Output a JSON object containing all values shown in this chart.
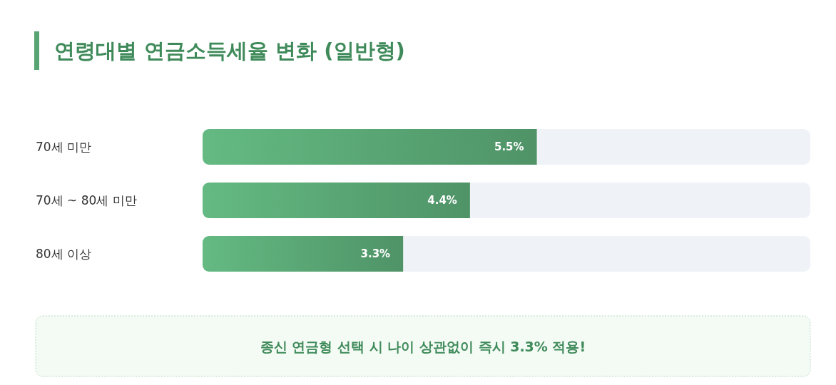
{
  "chart_data": {
    "type": "bar",
    "orientation": "horizontal",
    "title": "연령대별 연금소득세율 변화 (일반형)",
    "categories": [
      "70세 미만",
      "70세 ~ 80세 미만",
      "80세 이상"
    ],
    "values": [
      5.5,
      4.4,
      3.3
    ],
    "value_labels": [
      "5.5%",
      "4.4%",
      "3.3%"
    ],
    "color": "#58a473",
    "xlim": [
      0,
      10
    ],
    "tick_labels": "y",
    "annotations": [
      "종신 연금형 선택 시 나이 상관없이 즉시 3.3% 적용!"
    ]
  }
}
